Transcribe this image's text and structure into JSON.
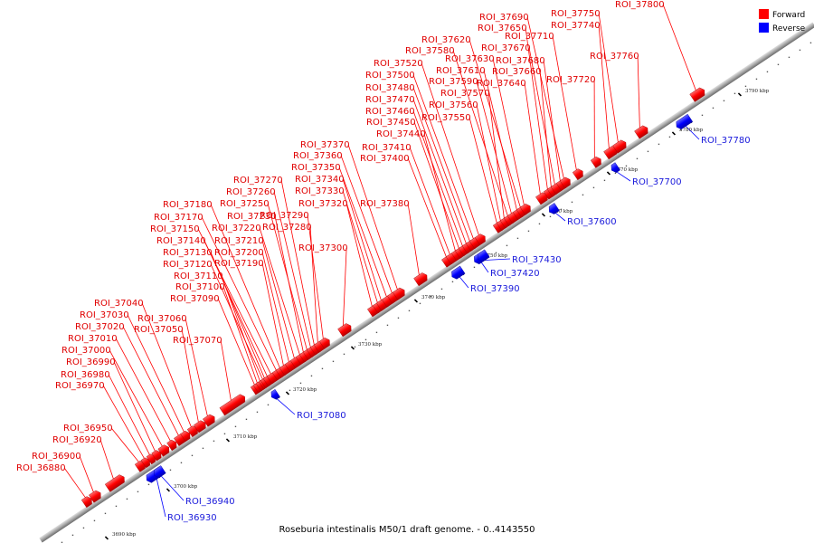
{
  "caption": "Roseburia intestinalis M50/1 draft genome. - 0..4143550",
  "colors": {
    "forward": "#ff0000",
    "reverse": "#0000ff",
    "forward_label": "#e00000",
    "reverse_label": "#1a1adb",
    "backbone": "#a8a8a8"
  },
  "legend": [
    {
      "label": "Forward",
      "color": "#ff0000"
    },
    {
      "label": "Reverse",
      "color": "#0000ff"
    }
  ],
  "ticks": [
    "3690 kbp",
    "3700 kbp",
    "3710 kbp",
    "3720 kbp",
    "3730 kbp",
    "3740 kbp",
    "3750 kbp",
    "3760 kbp",
    "3770 kbp",
    "3780 kbp",
    "3790 kbp"
  ],
  "forward_features": [
    "ROI_36880",
    "ROI_36900",
    "ROI_36920",
    "ROI_36950",
    "ROI_36970",
    "ROI_36980",
    "ROI_36990",
    "ROI_37000",
    "ROI_37010",
    "ROI_37020",
    "ROI_37030",
    "ROI_37040",
    "ROI_37050",
    "ROI_37060",
    "ROI_37070",
    "ROI_37090",
    "ROI_37100",
    "ROI_37110",
    "ROI_37120",
    "ROI_37130",
    "ROI_37140",
    "ROI_37150",
    "ROI_37170",
    "ROI_37180",
    "ROI_37190",
    "ROI_37200",
    "ROI_37210",
    "ROI_37220",
    "ROI_37230",
    "ROI_37250",
    "ROI_37260",
    "ROI_37270",
    "ROI_37280",
    "ROI_37290",
    "ROI_37300",
    "ROI_37320",
    "ROI_37330",
    "ROI_37340",
    "ROI_37350",
    "ROI_37360",
    "ROI_37370",
    "ROI_37380",
    "ROI_37400",
    "ROI_37410",
    "ROI_37440",
    "ROI_37450",
    "ROI_37460",
    "ROI_37470",
    "ROI_37480",
    "ROI_37500",
    "ROI_37520",
    "ROI_37550",
    "ROI_37560",
    "ROI_37570",
    "ROI_37580",
    "ROI_37590",
    "ROI_37610",
    "ROI_37620",
    "ROI_37630",
    "ROI_37640",
    "ROI_37650",
    "ROI_37660",
    "ROI_37670",
    "ROI_37680",
    "ROI_37690",
    "ROI_37710",
    "ROI_37720",
    "ROI_37740",
    "ROI_37750",
    "ROI_37760",
    "ROI_37800"
  ],
  "reverse_features": [
    "ROI_36930",
    "ROI_36940",
    "ROI_37080",
    "ROI_37390",
    "ROI_37420",
    "ROI_37430",
    "ROI_37600",
    "ROI_37700",
    "ROI_37780"
  ]
}
